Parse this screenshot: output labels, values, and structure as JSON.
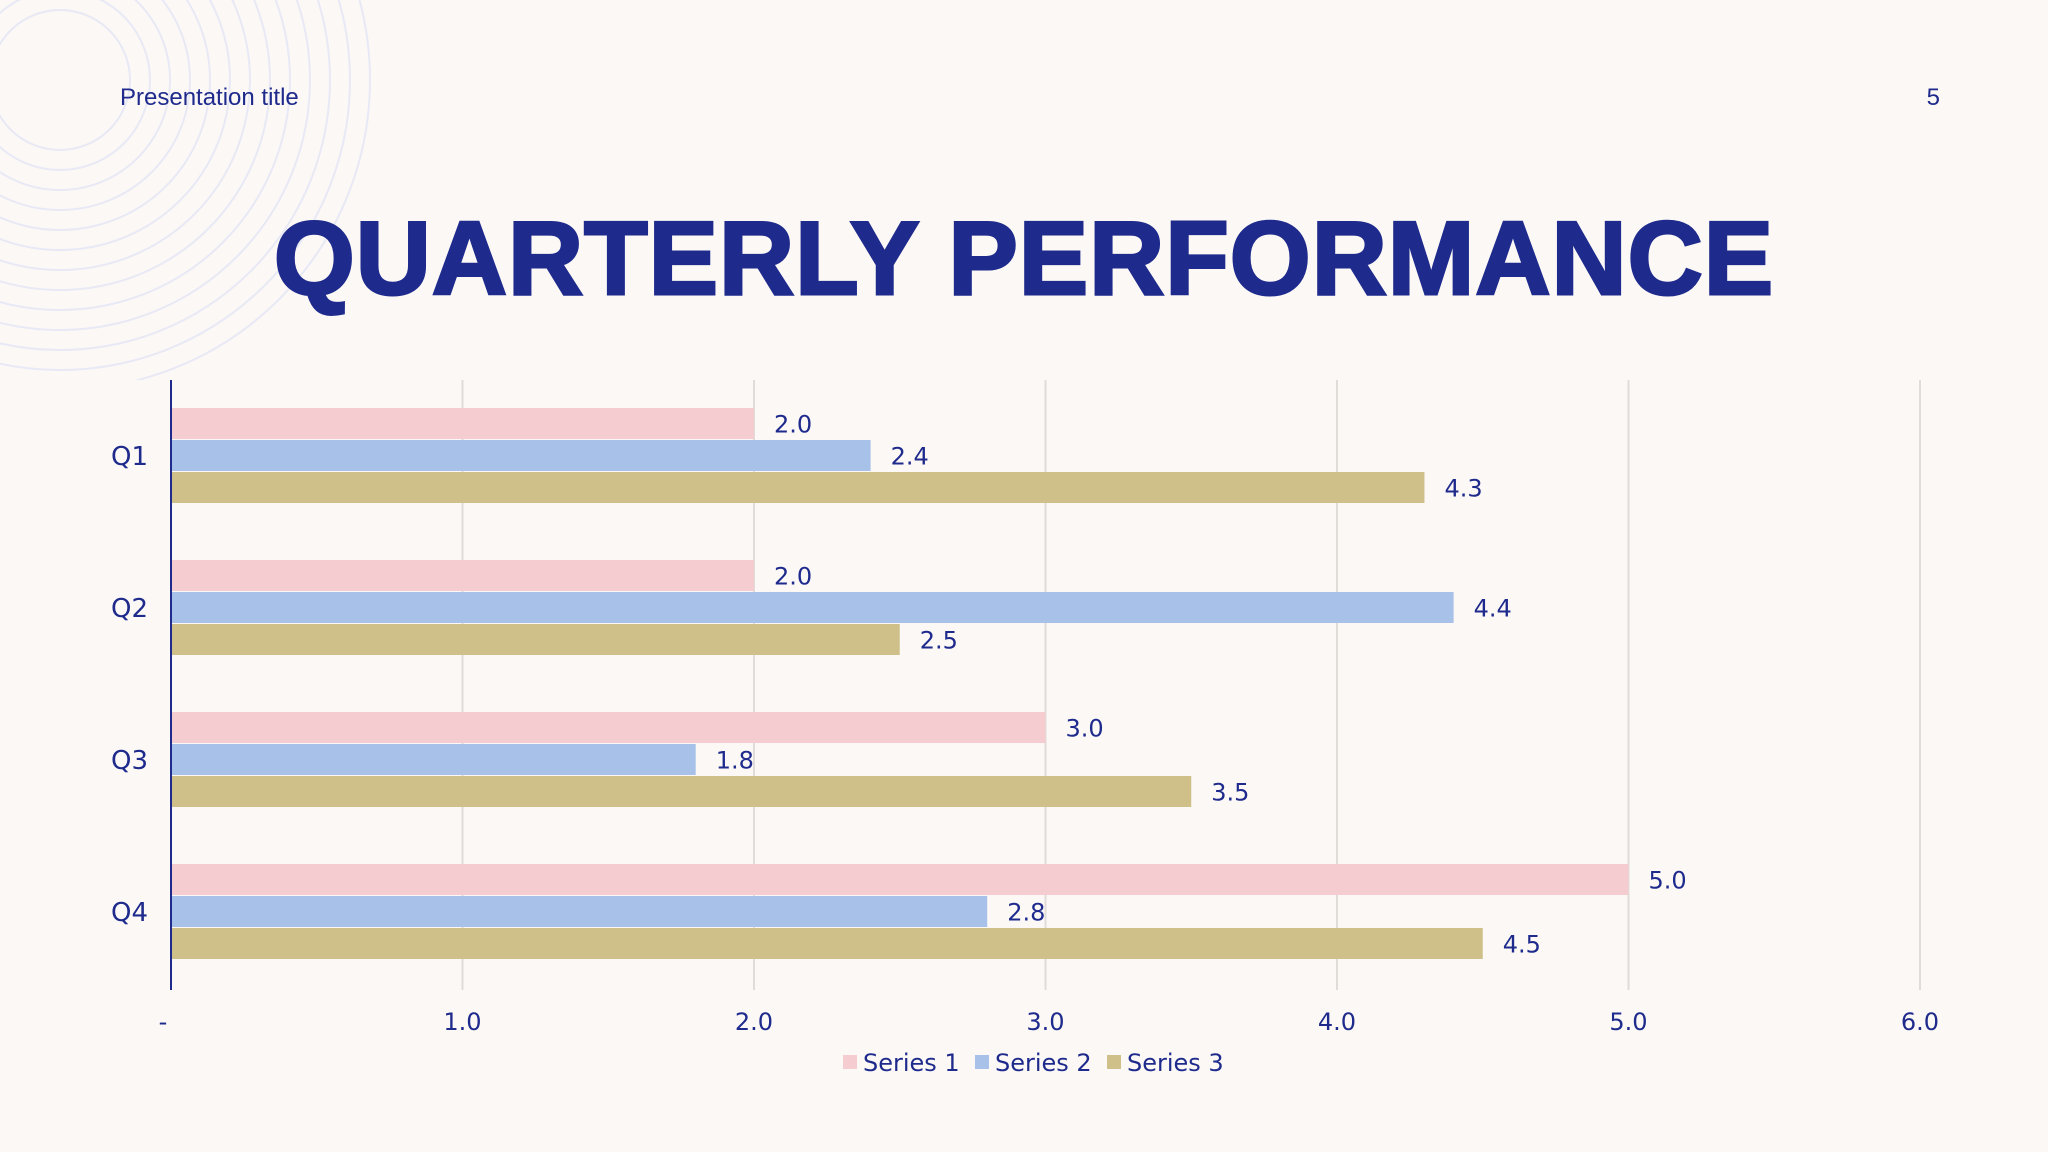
{
  "header": {
    "title": "Presentation title",
    "page_number": "5"
  },
  "slide": {
    "title": "QUARTERLY PERFORMANCE"
  },
  "colors": {
    "title": "#1e2a8c",
    "background": "#fbf8f6",
    "series_1": "#f5cdd1",
    "series_2": "#a8c1e8",
    "series_3": "#cfc08a",
    "gridline": "#e0dcd8",
    "axis": "#1e2a8c"
  },
  "chart_data": {
    "type": "bar",
    "orientation": "horizontal",
    "title": "",
    "xlabel": "",
    "ylabel": "",
    "categories": [
      "Q1",
      "Q2",
      "Q3",
      "Q4"
    ],
    "series": [
      {
        "name": "Series 1",
        "values": [
          2.0,
          2.0,
          3.0,
          5.0
        ],
        "labels": [
          "2.0",
          "2.0",
          "3.0",
          "5.0"
        ]
      },
      {
        "name": "Series 2",
        "values": [
          2.4,
          4.4,
          1.8,
          2.8
        ],
        "labels": [
          "2.4",
          "4.4",
          "1.8",
          "2.8"
        ]
      },
      {
        "name": "Series 3",
        "values": [
          4.3,
          2.5,
          3.5,
          4.5
        ],
        "labels": [
          "4.3",
          "2.5",
          "3.5",
          "4.5"
        ]
      }
    ],
    "xlim": [
      0,
      6
    ],
    "x_ticks": [
      0,
      1,
      2,
      3,
      4,
      5,
      6
    ],
    "x_tick_labels": [
      "-",
      "1.0",
      "2.0",
      "3.0",
      "4.0",
      "5.0",
      "6.0"
    ],
    "grid": "vertical",
    "legend_position": "bottom-center"
  }
}
